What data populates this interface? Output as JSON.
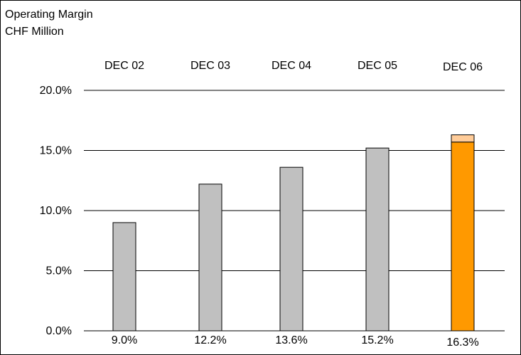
{
  "chart_data": {
    "type": "bar",
    "title": "Operating Margin",
    "subtitle": "CHF Million",
    "categories": [
      "DEC 02",
      "DEC 03",
      "DEC 04",
      "DEC 05",
      "DEC 06"
    ],
    "values": [
      9.0,
      12.2,
      13.6,
      15.2,
      16.3
    ],
    "data_labels": [
      "9.0%",
      "12.2%",
      "13.6%",
      "15.2%",
      "16.3%"
    ],
    "highlight_extra": [
      0,
      0,
      0,
      0,
      0.6
    ],
    "y_ticks": [
      "0.0%",
      "5.0%",
      "10.0%",
      "15.0%",
      "20.0%"
    ],
    "y_tick_values": [
      0,
      5,
      10,
      15,
      20
    ],
    "ylim": [
      0,
      20
    ],
    "grid": true,
    "legend": "none",
    "colors": {
      "bar": "#c0c0c0",
      "highlight_bar": "#ff9900",
      "highlight_cap": "#ffcc99",
      "grid": "#000000",
      "bar_stroke": "#000000"
    }
  }
}
